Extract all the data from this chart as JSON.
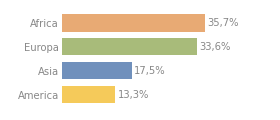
{
  "categories": [
    "America",
    "Asia",
    "Europa",
    "Africa"
  ],
  "values": [
    13.3,
    17.5,
    33.6,
    35.7
  ],
  "labels": [
    "13,3%",
    "17,5%",
    "33,6%",
    "35,7%"
  ],
  "bar_colors": [
    "#f5ca5a",
    "#7090bc",
    "#a8bb7a",
    "#e8aa74"
  ],
  "background_color": "#ffffff",
  "xlim": [
    0,
    46
  ],
  "bar_height": 0.72,
  "label_fontsize": 7.2,
  "tick_fontsize": 7.2,
  "tick_color": "#888888",
  "label_color": "#888888"
}
